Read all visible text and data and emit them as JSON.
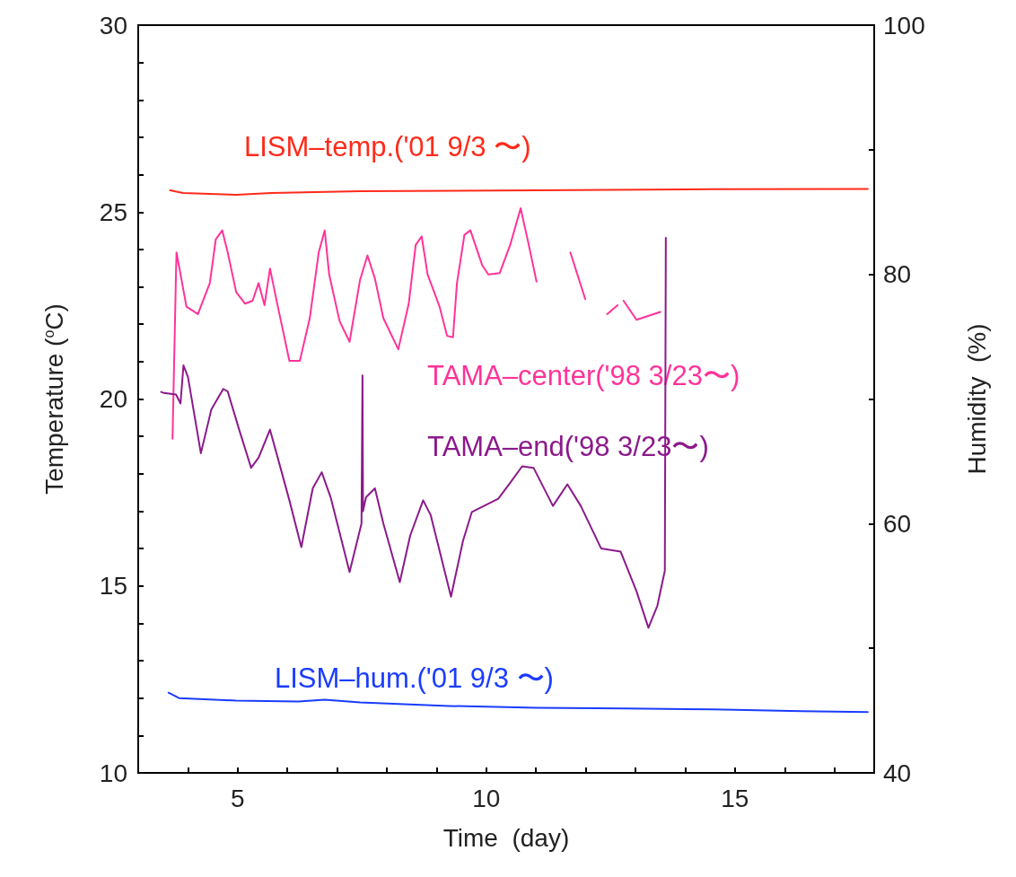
{
  "chart_data": {
    "type": "line",
    "xlabel": "Time  (day)",
    "ylabel": "Temperature ($^{o}$C)",
    "y2label": "Humidity  (%)",
    "xlim": [
      3,
      17.8
    ],
    "xticks": [
      {
        "value": 3,
        "label": null
      },
      {
        "value": 4,
        "label": null
      },
      5,
      {
        "value": 6,
        "label": null
      },
      {
        "value": 7,
        "label": null
      },
      {
        "value": 8,
        "label": null
      },
      {
        "value": 9,
        "label": null
      },
      10,
      {
        "value": 11,
        "label": null
      },
      {
        "value": 12,
        "label": null
      },
      {
        "value": 13,
        "label": null
      },
      {
        "value": 14,
        "label": null
      },
      15,
      {
        "value": 16,
        "label": null
      },
      {
        "value": 17,
        "label": null
      }
    ],
    "ylim": [
      10,
      30
    ],
    "yticks": [
      10,
      {
        "value": 11,
        "label": null
      },
      {
        "value": 12,
        "label": null
      },
      {
        "value": 13,
        "label": null
      },
      {
        "value": 14,
        "label": null
      },
      15,
      {
        "value": 16,
        "label": null
      },
      {
        "value": 17,
        "label": null
      },
      {
        "value": 18,
        "label": null
      },
      {
        "value": 19,
        "label": null
      },
      20,
      {
        "value": 21,
        "label": null
      },
      {
        "value": 22,
        "label": null
      },
      {
        "value": 23,
        "label": null
      },
      {
        "value": 24,
        "label": null
      },
      25,
      {
        "value": 26,
        "label": null
      },
      {
        "value": 27,
        "label": null
      },
      {
        "value": 28,
        "label": null
      },
      {
        "value": 29,
        "label": null
      },
      30
    ],
    "y2lim": [
      40,
      100
    ],
    "y2ticks": [
      40,
      {
        "value": 50,
        "label": null
      },
      60,
      {
        "value": 70,
        "label": null
      },
      80,
      {
        "value": 90,
        "label": null
      },
      100
    ],
    "line_style": "solid",
    "marker": "none",
    "grid": false,
    "legend": false,
    "series": [
      {
        "name": "LISM–temp.('01 9/3 〜)",
        "color": "#ff2a1a",
        "x": [
          3.64,
          3.9,
          4.97,
          5.68,
          7.46,
          11.01,
          14.56,
          17.67
        ],
        "values": [
          25.58,
          25.51,
          25.46,
          25.51,
          25.56,
          25.58,
          25.61,
          25.62
        ]
      },
      {
        "name": "TAMA–center('98 3/23〜)",
        "color": "#ff3399",
        "x": [
          3.69,
          3.76,
          3.77,
          3.97,
          4.2,
          4.44,
          4.56,
          4.69,
          4.8,
          4.97,
          5.15,
          5.3,
          5.42,
          5.54,
          5.65,
          5.77,
          6.04,
          6.25,
          6.45,
          6.63,
          6.75,
          6.84,
          7.05,
          7.25,
          7.46,
          7.61,
          7.76,
          7.93,
          8.23,
          8.44,
          8.58,
          8.7,
          8.82,
          9.06,
          9.21,
          9.33,
          9.41,
          9.56,
          9.68,
          9.92,
          10.04,
          10.27,
          10.48,
          10.69,
          10.83,
          11.01,
          11.3,
          11.69,
          11.99,
          12.2,
          12.43,
          12.64,
          12.7,
          12.76,
          13.02,
          13.5
        ],
        "values": [
          18.94,
          23.37,
          23.92,
          22.47,
          22.27,
          23.1,
          24.27,
          24.51,
          23.92,
          22.86,
          22.55,
          22.63,
          23.1,
          22.51,
          23.49,
          22.71,
          21.02,
          21.02,
          22.16,
          23.92,
          24.51,
          23.33,
          22.08,
          21.53,
          23.18,
          23.84,
          23.22,
          22.16,
          21.33,
          22.55,
          24.12,
          24.35,
          23.33,
          22.47,
          21.69,
          21.65,
          23.1,
          24.39,
          24.51,
          23.57,
          23.33,
          23.37,
          24.12,
          25.1,
          24.27,
          23.14,
          null,
          23.92,
          22.67,
          null,
          22.27,
          22.51,
          null,
          22.63,
          22.12,
          22.33
        ]
      },
      {
        "name": "TAMA–end('98 3/23〜)",
        "color": "#8b1a8b",
        "x": [
          3.46,
          3.52,
          3.76,
          3.85,
          3.91,
          4.0,
          4.26,
          4.47,
          4.71,
          4.8,
          5.03,
          5.27,
          5.42,
          5.65,
          5.83,
          6.04,
          6.28,
          6.51,
          6.69,
          6.87,
          7.25,
          7.49,
          7.51,
          7.52,
          7.58,
          7.76,
          7.93,
          8.26,
          8.47,
          8.73,
          8.88,
          9.29,
          9.53,
          9.71,
          10.24,
          10.48,
          10.72,
          10.95,
          11.34,
          11.63,
          11.9,
          12.31,
          12.7,
          13.02,
          13.26,
          13.44,
          13.59,
          13.61
        ],
        "values": [
          20.19,
          20.16,
          20.12,
          19.88,
          20.9,
          20.59,
          18.55,
          19.72,
          20.27,
          20.2,
          19.18,
          18.16,
          18.43,
          19.18,
          18.31,
          17.29,
          16.04,
          17.61,
          18.04,
          17.37,
          15.37,
          16.67,
          20.63,
          17.0,
          17.37,
          17.61,
          16.67,
          15.1,
          16.35,
          17.29,
          16.9,
          14.71,
          16.2,
          16.98,
          17.33,
          17.76,
          18.2,
          18.16,
          17.14,
          17.72,
          17.14,
          16.0,
          15.92,
          14.86,
          13.88,
          14.47,
          15.41,
          24.31
        ]
      },
      {
        "name": "LISM–hum.('01 9/3 〜)",
        "color": "#1a3cff",
        "axis": "y2",
        "x": [
          3.61,
          3.82,
          4.97,
          6.22,
          6.75,
          7.46,
          9.24,
          11.01,
          12.79,
          14.56,
          16.34,
          17.67
        ],
        "values": [
          46.43,
          46.0,
          45.8,
          45.72,
          45.87,
          45.65,
          45.37,
          45.23,
          45.16,
          45.09,
          44.95,
          44.88
        ]
      }
    ]
  }
}
